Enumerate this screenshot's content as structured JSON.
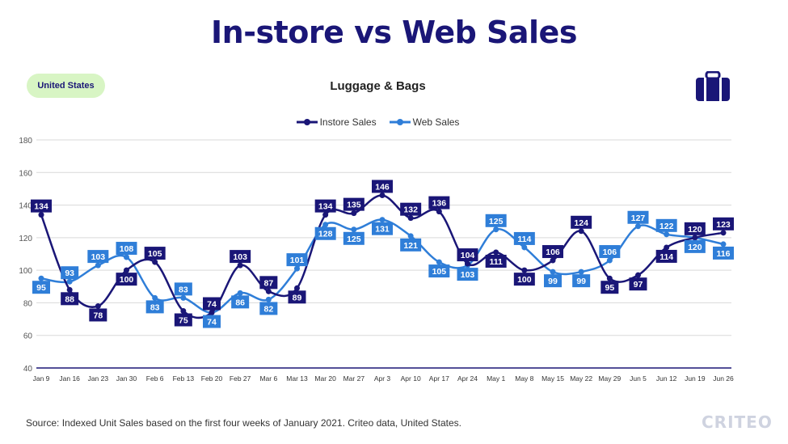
{
  "title": "In-store vs Web Sales",
  "badge": "United States",
  "source": "Source: Indexed Unit Sales based on the first four weeks of January 2021. Criteo data, United States.",
  "logo": "CRITEO",
  "icon": "suitcase-icon",
  "colors": {
    "instore": "#1a1677",
    "web": "#2f7ed8",
    "title": "#1a1677",
    "badge_bg": "#d8f5c4",
    "axis": "#1a1677",
    "grid": "#d9d9d9"
  },
  "chart_data": {
    "type": "line",
    "title": "Luggage & Bags",
    "xlabel": "",
    "ylabel": "",
    "ylim": [
      40,
      180
    ],
    "yticks": [
      40,
      60,
      80,
      100,
      120,
      140,
      160,
      180
    ],
    "grid": true,
    "legend": "top-center",
    "categories": [
      "Jan 9",
      "Jan 16",
      "Jan 23",
      "Jan 30",
      "Feb 6",
      "Feb 13",
      "Feb 20",
      "Feb 27",
      "Mar 6",
      "Mar 13",
      "Mar 20",
      "Mar 27",
      "Apr 3",
      "Apr 10",
      "Apr 17",
      "Apr 24",
      "May 1",
      "May 8",
      "May 15",
      "May 22",
      "May 29",
      "Jun 5",
      "Jun 12",
      "Jun 19",
      "Jun 26"
    ],
    "series": [
      {
        "name": "Instore Sales",
        "values": [
          134,
          88,
          78,
          100,
          105,
          75,
          74,
          103,
          87,
          89,
          134,
          135,
          146,
          132,
          136,
          104,
          111,
          100,
          106,
          124,
          95,
          97,
          114,
          120,
          123
        ]
      },
      {
        "name": "Web Sales",
        "values": [
          95,
          93,
          103,
          108,
          83,
          83,
          74,
          86,
          82,
          101,
          128,
          125,
          131,
          121,
          105,
          103,
          125,
          114,
          99,
          99,
          106,
          127,
          122,
          120,
          116
        ]
      }
    ]
  }
}
